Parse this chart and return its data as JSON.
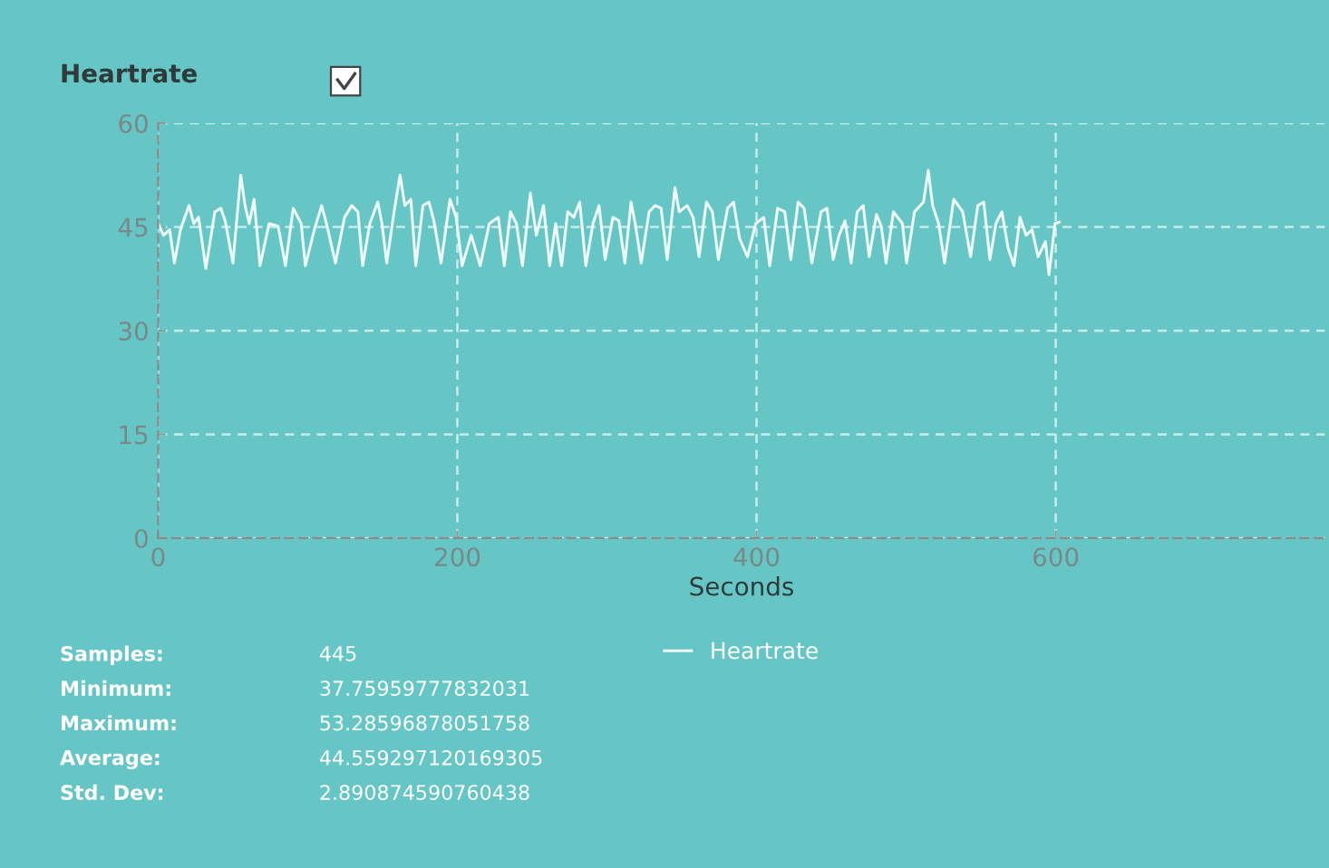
{
  "chart_data": {
    "type": "line",
    "title": "Heartrate",
    "xlabel": "Seconds",
    "xlim": [
      0,
      780
    ],
    "xticks": [
      0,
      200,
      400,
      600
    ],
    "ylim": [
      0,
      60
    ],
    "yticks": [
      0,
      15,
      30,
      45,
      60
    ],
    "grid": true,
    "legend": "bottom",
    "line_style": "solid",
    "annotations": [
      "Samples:",
      "445",
      "Minimum:",
      "37.75959777832031",
      "Maximum:",
      "53.28596878051758",
      "Average:",
      "44.559297120169305",
      "Std. Dev:",
      "2.890874590760438"
    ],
    "series": [
      {
        "name": "Heartrate",
        "color": "#eefafa",
        "x": [
          0,
          3.6,
          7.7,
          10.9,
          14.9,
          20.6,
          23.8,
          27.0,
          31.9,
          37.9,
          41.9,
          44.8,
          50.0,
          55.2,
          58.1,
          60.9,
          64.1,
          68.1,
          74.2,
          80.2,
          85.1,
          90.3,
          95.6,
          98.4,
          104.4,
          109.3,
          112.5,
          118.5,
          124.6,
          129.4,
          133.5,
          136.7,
          141.5,
          146.8,
          149.6,
          152.8,
          157.7,
          161.7,
          164.9,
          168.9,
          172.2,
          177.0,
          181.0,
          184.3,
          189.1,
          195.1,
          199.2,
          203.2,
          209.3,
          215.3,
          221.4,
          227.4,
          231.4,
          235.5,
          239.5,
          243.5,
          248.8,
          252.8,
          257.6,
          261.7,
          265.7,
          269.7,
          273.8,
          277.8,
          281.8,
          285.9,
          290.7,
          294.7,
          298.8,
          304.0,
          308.0,
          312.0,
          316.1,
          318.9,
          322.9,
          328.2,
          332.2,
          336.2,
          340.3,
          345.5,
          348.3,
          353.6,
          357.6,
          361.6,
          366.5,
          370.5,
          374.5,
          380.6,
          384.6,
          388.7,
          393.9,
          399.5,
          404.8,
          408.8,
          414.1,
          418.9,
          422.9,
          427.8,
          431.8,
          437.0,
          443.1,
          447.1,
          451.2,
          455.2,
          459.2,
          463.2,
          467.3,
          471.3,
          475.3,
          480.2,
          483.4,
          486.6,
          491.5,
          497.5,
          500.3,
          505.6,
          511.6,
          514.8,
          517.7,
          521.7,
          525.7,
          531.8,
          537.8,
          543.1,
          547.9,
          551.9,
          556.0,
          560.0,
          564.0,
          568.1,
          572.1,
          576.1,
          580.2,
          584.2,
          588.2,
          593.1,
          595.5,
          599.5,
          602.3
        ],
        "values": [
          45.5,
          43.8,
          44.6,
          39.8,
          44.6,
          48.1,
          45.5,
          46.4,
          39.0,
          47.2,
          47.7,
          45.9,
          39.8,
          52.5,
          48.1,
          45.5,
          49.0,
          39.4,
          45.5,
          45.1,
          39.4,
          47.7,
          45.5,
          39.4,
          44.6,
          48.1,
          45.5,
          39.8,
          46.4,
          48.1,
          47.2,
          39.4,
          45.5,
          48.6,
          45.5,
          39.8,
          47.2,
          52.5,
          48.1,
          49.0,
          39.4,
          48.1,
          48.6,
          45.9,
          39.8,
          49.0,
          46.4,
          39.4,
          43.8,
          39.4,
          45.5,
          46.4,
          39.4,
          47.2,
          45.5,
          39.4,
          49.9,
          43.8,
          48.1,
          39.4,
          45.5,
          39.4,
          47.2,
          46.4,
          48.6,
          39.4,
          45.5,
          48.1,
          40.3,
          46.4,
          45.9,
          39.8,
          48.6,
          45.5,
          39.8,
          47.2,
          48.1,
          47.7,
          40.3,
          50.7,
          47.2,
          48.1,
          46.4,
          40.7,
          48.6,
          47.2,
          40.3,
          47.7,
          48.6,
          43.3,
          40.7,
          45.5,
          46.4,
          39.4,
          47.7,
          47.2,
          40.3,
          48.6,
          47.7,
          39.8,
          47.2,
          47.7,
          40.3,
          43.8,
          45.9,
          39.8,
          47.2,
          48.1,
          40.7,
          46.8,
          45.1,
          39.8,
          47.2,
          45.5,
          39.8,
          47.2,
          48.6,
          53.2,
          48.1,
          45.5,
          39.8,
          49.0,
          47.2,
          40.7,
          48.1,
          48.6,
          40.3,
          45.5,
          47.2,
          42.0,
          39.4,
          46.4,
          43.8,
          44.6,
          40.7,
          42.9,
          38.1,
          45.5,
          45.7
        ]
      }
    ]
  }
}
